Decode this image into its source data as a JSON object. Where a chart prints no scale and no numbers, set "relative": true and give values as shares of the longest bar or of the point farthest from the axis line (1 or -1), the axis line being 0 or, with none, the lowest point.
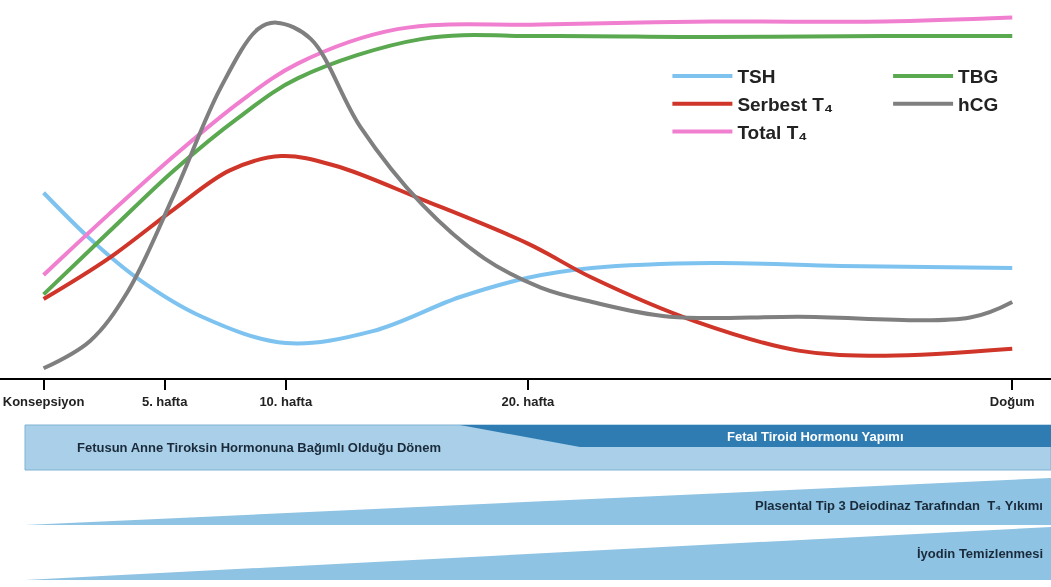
{
  "chart_data": {
    "type": "line",
    "relative": true,
    "xlim": [
      -1.8,
      41.6
    ],
    "xticks": [
      {
        "value": 0,
        "label": "Konsepsiyon"
      },
      {
        "value": 5,
        "label": "5. hafta"
      },
      {
        "value": 10,
        "label": "10. hafta"
      },
      {
        "value": 20,
        "label": "20. hafta"
      },
      {
        "value": 40,
        "label": "Doğum"
      }
    ],
    "grid": false,
    "legend": "top right",
    "marker": "none",
    "line_style": "solid",
    "tick_labels": "x",
    "series": [
      {
        "name": "TSH",
        "color": "#7ec3f0",
        "x": [
          0,
          1.92,
          3.85,
          6.54,
          10,
          13.59,
          17.17,
          20,
          22.65,
          27.62,
          32.94,
          40
        ],
        "values": [
          0.514,
          0.386,
          0.278,
          0.17,
          0.097,
          0.13,
          0.224,
          0.278,
          0.305,
          0.319,
          0.311,
          0.305
        ]
      },
      {
        "name": "Serbest T₄",
        "color": "#d0352a",
        "x": [
          0,
          2.69,
          5.38,
          7.69,
          9.81,
          12.05,
          15.64,
          20,
          22.65,
          26.91,
          31.17,
          34.71,
          40
        ],
        "values": [
          0.219,
          0.332,
          0.468,
          0.576,
          0.616,
          0.589,
          0.495,
          0.373,
          0.278,
          0.157,
          0.076,
          0.062,
          0.081
        ]
      },
      {
        "name": "Total T₄",
        "color": "#f07fd0",
        "x": [
          0,
          2.69,
          5.38,
          8.08,
          10.51,
          14.61,
          20.53,
          27.62,
          34.71,
          40
        ],
        "values": [
          0.286,
          0.454,
          0.616,
          0.765,
          0.873,
          0.968,
          0.981,
          0.989,
          0.989,
          1
        ]
      },
      {
        "name": "TBG",
        "color": "#5aa84f",
        "x": [
          0,
          2.69,
          5.38,
          8.08,
          10.51,
          15.64,
          20.53,
          27.62,
          34.71,
          40
        ],
        "values": [
          0.232,
          0.405,
          0.576,
          0.724,
          0.832,
          0.941,
          0.949,
          0.946,
          0.949,
          0.949
        ]
      },
      {
        "name": "hCG",
        "color": "#7f7f7f",
        "x": [
          0,
          1.92,
          3.46,
          5.38,
          7.31,
          8.85,
          9.62,
          11.03,
          13.08,
          15.64,
          18.2,
          20.53,
          22.65,
          25.85,
          31.17,
          38.26,
          40
        ],
        "values": [
          0.027,
          0.103,
          0.238,
          0.508,
          0.805,
          0.968,
          0.986,
          0.941,
          0.697,
          0.481,
          0.332,
          0.251,
          0.211,
          0.17,
          0.17,
          0.168,
          0.211
        ]
      }
    ],
    "annotations": [
      "Fetusun Anne Tiroksin Hormonuna Bağımlı Olduğu Dönem",
      "Fetal Tiroid Hormonu Yapımı",
      "Plasental Tip 3 Deiodinaz Tarafından  T₄ Yıkımı",
      "İyodin Temizlenmesi"
    ]
  }
}
